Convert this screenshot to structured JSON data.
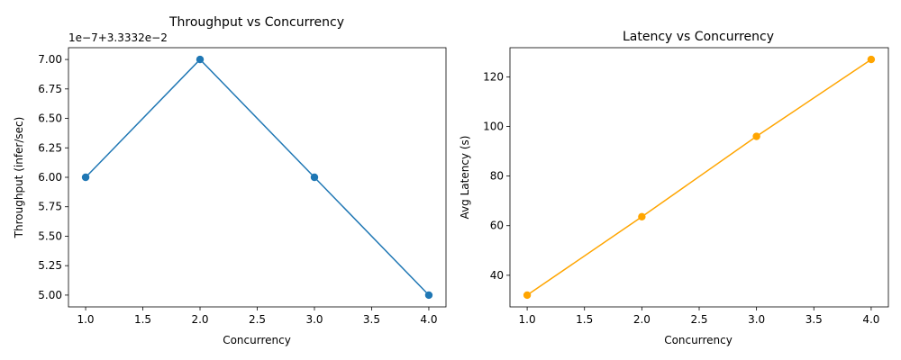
{
  "chart_data": [
    {
      "type": "line",
      "title": "Throughput vs Concurrency",
      "xlabel": "Concurrency",
      "ylabel": "Throughput (infer/sec)",
      "offset_text": "1e−7+3.3332e−2",
      "x": [
        1.0,
        2.0,
        3.0,
        4.0
      ],
      "series": [
        {
          "values": [
            6.0,
            7.0,
            6.0,
            5.0
          ],
          "color": "#1f77b4"
        }
      ],
      "xlim": [
        0.85,
        4.15
      ],
      "ylim": [
        4.9,
        7.1
      ],
      "xticks": [
        1.0,
        1.5,
        2.0,
        2.5,
        3.0,
        3.5,
        4.0
      ],
      "xtick_labels": [
        "1.0",
        "1.5",
        "2.0",
        "2.5",
        "3.0",
        "3.5",
        "4.0"
      ],
      "yticks": [
        5.0,
        5.25,
        5.5,
        5.75,
        6.0,
        6.25,
        6.5,
        6.75,
        7.0
      ],
      "ytick_labels": [
        "5.00",
        "5.25",
        "5.50",
        "5.75",
        "6.00",
        "6.25",
        "6.50",
        "6.75",
        "7.00"
      ],
      "grid": false,
      "marker": "circle"
    },
    {
      "type": "line",
      "title": "Latency vs Concurrency",
      "xlabel": "Concurrency",
      "ylabel": "Avg Latency (s)",
      "offset_text": "",
      "x": [
        1.0,
        2.0,
        3.0,
        4.0
      ],
      "series": [
        {
          "values": [
            32.0,
            63.6,
            96.0,
            127.0
          ],
          "color": "#ffa500"
        }
      ],
      "xlim": [
        0.85,
        4.15
      ],
      "ylim": [
        27.25,
        131.75
      ],
      "xticks": [
        1.0,
        1.5,
        2.0,
        2.5,
        3.0,
        3.5,
        4.0
      ],
      "xtick_labels": [
        "1.0",
        "1.5",
        "2.0",
        "2.5",
        "3.0",
        "3.5",
        "4.0"
      ],
      "yticks": [
        40,
        60,
        80,
        100,
        120
      ],
      "ytick_labels": [
        "40",
        "60",
        "80",
        "100",
        "120"
      ],
      "grid": false,
      "marker": "circle"
    }
  ]
}
